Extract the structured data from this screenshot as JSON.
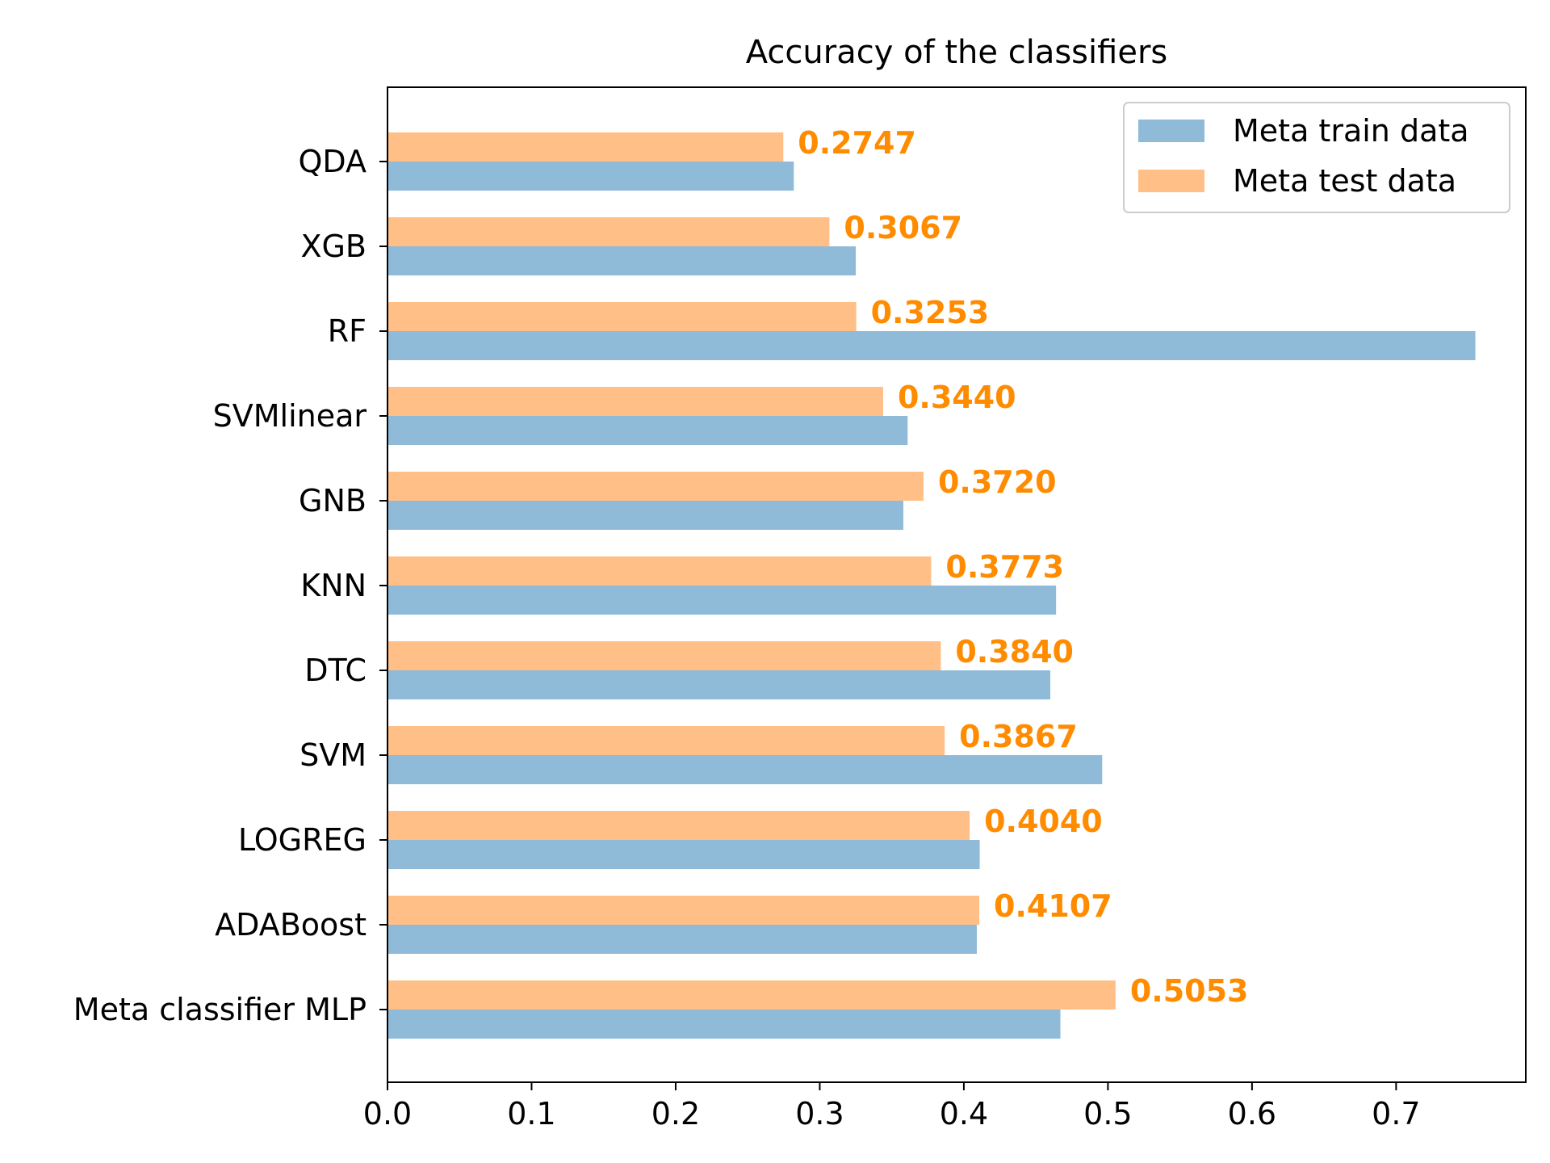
{
  "chart_data": {
    "type": "bar",
    "orientation": "horizontal",
    "title": "Accuracy of the classifiers",
    "xlabel": "",
    "ylabel": "",
    "xlim": [
      0,
      0.79
    ],
    "x_ticks": [
      "0.0",
      "0.1",
      "0.2",
      "0.3",
      "0.4",
      "0.5",
      "0.6",
      "0.7"
    ],
    "categories": [
      "QDA",
      "XGB",
      "RF",
      "SVMlinear",
      "GNB",
      "KNN",
      "DTC",
      "SVM",
      "LOGREG",
      "ADABoost",
      "Meta classifier MLP"
    ],
    "series": [
      {
        "name": "Meta train data",
        "color": "#8fbbd9",
        "values": [
          0.282,
          0.325,
          0.755,
          0.361,
          0.358,
          0.464,
          0.46,
          0.496,
          0.411,
          0.409,
          0.467
        ]
      },
      {
        "name": "Meta test data",
        "color": "#ffbf87",
        "values": [
          0.2747,
          0.3067,
          0.3253,
          0.344,
          0.372,
          0.3773,
          0.384,
          0.3867,
          0.404,
          0.4107,
          0.5053
        ],
        "value_labels": [
          "0.2747",
          "0.3067",
          "0.3253",
          "0.3440",
          "0.3720",
          "0.3773",
          "0.3840",
          "0.3867",
          "0.4040",
          "0.4107",
          "0.5053"
        ]
      }
    ],
    "value_label_color": "#ff8c00",
    "grid": false,
    "legend_position": "top-right"
  }
}
